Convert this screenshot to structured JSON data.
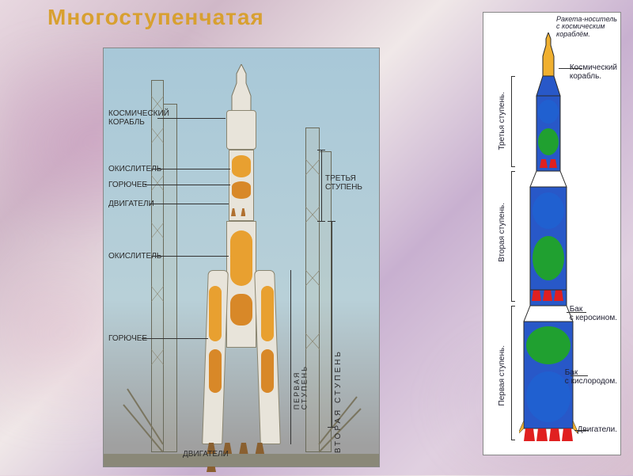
{
  "title": {
    "text": "Многоступенчатая",
    "color": "#d8a030"
  },
  "panels": {
    "left": {
      "labels": {
        "spacecraft": "КОСМИЧЕСКИЙ\nКОРАБЛЬ",
        "oxidizer1": "ОКИСЛИТЕЛЬ",
        "fuel1": "ГОРЮЧЕЕ",
        "engines1": "ДВИГАТЕЛИ",
        "oxidizer2": "ОКИСЛИТЕЛЬ",
        "fuel2": "ГОРЮЧЕЕ",
        "engines2": "ДВИГАТЕЛИ",
        "stage3": "ТРЕТЬЯ\nСТУПЕНЬ",
        "stage2": "ВТОРАЯ СТУПЕНЬ",
        "stage1": "ПЕРВАЯ\nСТУПЕНЬ"
      },
      "colors": {
        "body": "#e8e4da",
        "tank_oxidizer": "#e8a030",
        "tank_fuel": "#d88828",
        "tower": "#8a8570"
      }
    },
    "right": {
      "title": "Ракета-носитель\nс космическим\nкораблём.",
      "labels": {
        "spacecraft": "Космический\nкорабль.",
        "kerosene": "Бак\nс керосином.",
        "oxygen": "Бак\nс кислородом.",
        "engines": "Двигатели.",
        "stage3": "Третья ступень.",
        "stage2": "Вторая ступень.",
        "stage1": "Первая ступень."
      },
      "colors": {
        "nose": "#f0b030",
        "body": "#2858c8",
        "green": "#20a030",
        "blue": "#2060d0",
        "engine": "#e02020",
        "outline": "#2a2a2a",
        "bg": "#ffffff"
      },
      "structure": [
        {
          "section": "nose",
          "h": 45
        },
        {
          "section": "stage3",
          "h": 105
        },
        {
          "section": "stage2",
          "h": 160
        },
        {
          "section": "stage1",
          "h": 190
        }
      ]
    }
  }
}
